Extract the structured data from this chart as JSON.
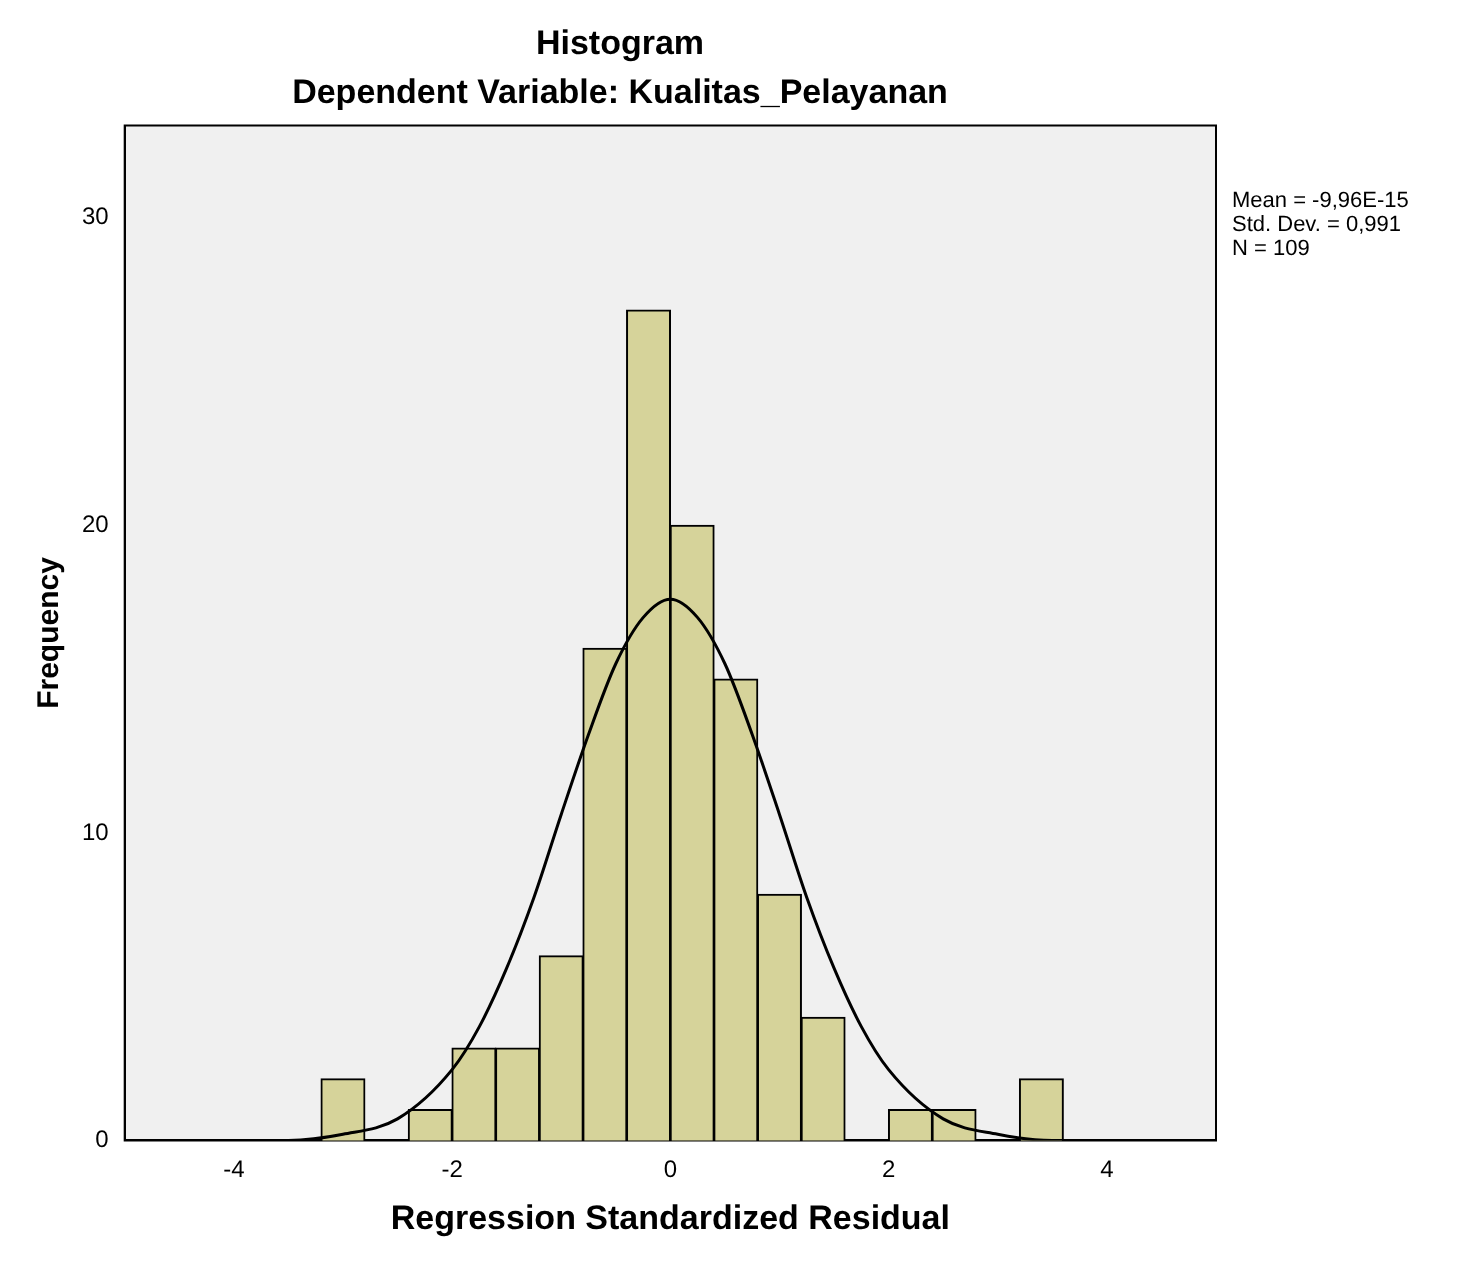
{
  "chart_data": {
    "type": "histogram",
    "title": "Histogram",
    "subtitle": "Dependent Variable: Kualitas_Pelayanan",
    "xlabel": "Regression Standardized Residual",
    "ylabel": "Frequency",
    "bins": [
      -3.2,
      -2.8,
      -2.4,
      -2.0,
      -1.6,
      -1.2,
      -0.8,
      -0.4,
      0,
      0.4,
      0.8,
      1.2,
      1.6,
      2.0,
      2.4,
      2.8,
      3.2,
      3.6
    ],
    "values": [
      2,
      0,
      1,
      3,
      3,
      6,
      16,
      27,
      20,
      15,
      8,
      4,
      0,
      1,
      1,
      0,
      2
    ],
    "color": "#d6d39a",
    "series": [
      {
        "type": "line",
        "color": "#000000",
        "x": [
          -4,
          -3.5,
          -3,
          -2.5,
          -2,
          -1.75,
          -1.5,
          -1.25,
          -1,
          -0.75,
          -0.5,
          -0.25,
          0,
          0.25,
          0.5,
          0.75,
          1,
          1.25,
          1.5,
          1.75,
          2,
          2.5,
          3,
          3.5,
          4
        ],
        "values": [
          0,
          0,
          0.2,
          0.7,
          2.3,
          3.7,
          5.6,
          7.9,
          10.6,
          13.2,
          15.5,
          17.0,
          17.6,
          17.0,
          15.5,
          13.2,
          10.6,
          7.9,
          5.6,
          3.7,
          2.3,
          0.7,
          0.2,
          0,
          0
        ]
      }
    ],
    "xlim": [
      -5,
      5
    ],
    "xticks": [
      -4,
      -2,
      0,
      2,
      4
    ],
    "ylim": [
      0,
      33
    ],
    "yticks": [
      0,
      10,
      20,
      30
    ],
    "annotations": [
      "Mean = -9,96E-15",
      "Std. Dev. = 0,991",
      "N = 109"
    ],
    "grid": false,
    "legend": false
  }
}
